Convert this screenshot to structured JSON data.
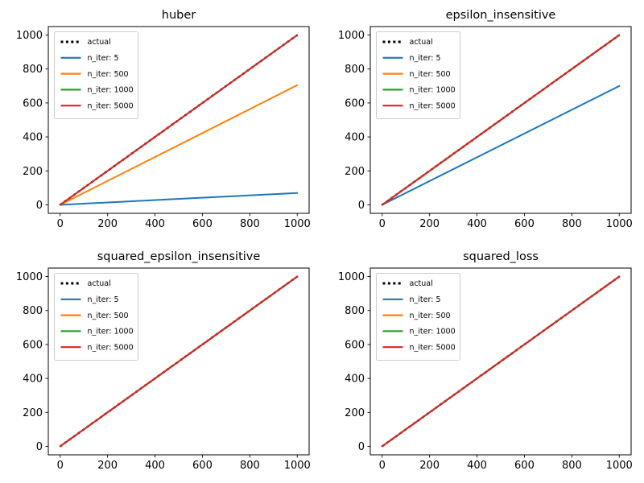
{
  "figure": {
    "background_color": "#ffffff",
    "rows": 2,
    "cols": 2
  },
  "palette": {
    "actual": "#000000",
    "n_iter_5": "#1f77b4",
    "n_iter_500": "#ff7f0e",
    "n_iter_1000": "#2ca02c",
    "n_iter_5000": "#d62728",
    "axis_color": "#000000",
    "legend_border": "#cccccc",
    "legend_bg": "#ffffff"
  },
  "chart_data": [
    {
      "type": "line",
      "title": "huber",
      "xlabel": "",
      "ylabel": "",
      "xlim": [
        -50,
        1050
      ],
      "ylim": [
        -50,
        1050
      ],
      "x_ticks": [
        0,
        200,
        400,
        600,
        800,
        1000
      ],
      "y_ticks": [
        0,
        200,
        400,
        600,
        800,
        1000
      ],
      "grid": false,
      "legend_position": "upper left",
      "series": [
        {
          "name": "actual",
          "color": "#000000",
          "style": "dotted",
          "x": [
            0,
            1000
          ],
          "y": [
            0,
            1000
          ]
        },
        {
          "name": "n_iter: 5",
          "color": "#1f77b4",
          "style": "solid",
          "x": [
            0,
            1000
          ],
          "y": [
            0,
            70
          ]
        },
        {
          "name": "n_iter: 500",
          "color": "#ff7f0e",
          "style": "solid",
          "x": [
            0,
            1000
          ],
          "y": [
            0,
            705
          ]
        },
        {
          "name": "n_iter: 1000",
          "color": "#2ca02c",
          "style": "solid",
          "x": [
            0,
            1000
          ],
          "y": [
            0,
            1000
          ]
        },
        {
          "name": "n_iter: 5000",
          "color": "#d62728",
          "style": "solid",
          "x": [
            0,
            1000
          ],
          "y": [
            0,
            1000
          ]
        }
      ]
    },
    {
      "type": "line",
      "title": "epsilon_insensitive",
      "xlabel": "",
      "ylabel": "",
      "xlim": [
        -50,
        1050
      ],
      "ylim": [
        -50,
        1050
      ],
      "x_ticks": [
        0,
        200,
        400,
        600,
        800,
        1000
      ],
      "y_ticks": [
        0,
        200,
        400,
        600,
        800,
        1000
      ],
      "grid": false,
      "legend_position": "upper left",
      "series": [
        {
          "name": "actual",
          "color": "#000000",
          "style": "dotted",
          "x": [
            0,
            1000
          ],
          "y": [
            0,
            1000
          ]
        },
        {
          "name": "n_iter: 5",
          "color": "#1f77b4",
          "style": "solid",
          "x": [
            0,
            1000
          ],
          "y": [
            0,
            700
          ]
        },
        {
          "name": "n_iter: 500",
          "color": "#ff7f0e",
          "style": "solid",
          "x": [
            0,
            1000
          ],
          "y": [
            0,
            1000
          ]
        },
        {
          "name": "n_iter: 1000",
          "color": "#2ca02c",
          "style": "solid",
          "x": [
            0,
            1000
          ],
          "y": [
            0,
            1000
          ]
        },
        {
          "name": "n_iter: 5000",
          "color": "#d62728",
          "style": "solid",
          "x": [
            0,
            1000
          ],
          "y": [
            0,
            1000
          ]
        }
      ]
    },
    {
      "type": "line",
      "title": "squared_epsilon_insensitive",
      "xlabel": "",
      "ylabel": "",
      "xlim": [
        -50,
        1050
      ],
      "ylim": [
        -50,
        1050
      ],
      "x_ticks": [
        0,
        200,
        400,
        600,
        800,
        1000
      ],
      "y_ticks": [
        0,
        200,
        400,
        600,
        800,
        1000
      ],
      "grid": false,
      "legend_position": "upper left",
      "series": [
        {
          "name": "actual",
          "color": "#000000",
          "style": "dotted",
          "x": [
            0,
            1000
          ],
          "y": [
            0,
            1000
          ]
        },
        {
          "name": "n_iter: 5",
          "color": "#1f77b4",
          "style": "solid",
          "x": [
            0,
            1000
          ],
          "y": [
            0,
            1000
          ]
        },
        {
          "name": "n_iter: 500",
          "color": "#ff7f0e",
          "style": "solid",
          "x": [
            0,
            1000
          ],
          "y": [
            0,
            1000
          ]
        },
        {
          "name": "n_iter: 1000",
          "color": "#2ca02c",
          "style": "solid",
          "x": [
            0,
            1000
          ],
          "y": [
            0,
            1000
          ]
        },
        {
          "name": "n_iter: 5000",
          "color": "#d62728",
          "style": "solid",
          "x": [
            0,
            1000
          ],
          "y": [
            0,
            1000
          ]
        }
      ]
    },
    {
      "type": "line",
      "title": "squared_loss",
      "xlabel": "",
      "ylabel": "",
      "xlim": [
        -50,
        1050
      ],
      "ylim": [
        -50,
        1050
      ],
      "x_ticks": [
        0,
        200,
        400,
        600,
        800,
        1000
      ],
      "y_ticks": [
        0,
        200,
        400,
        600,
        800,
        1000
      ],
      "grid": false,
      "legend_position": "upper left",
      "series": [
        {
          "name": "actual",
          "color": "#000000",
          "style": "dotted",
          "x": [
            0,
            1000
          ],
          "y": [
            0,
            1000
          ]
        },
        {
          "name": "n_iter: 5",
          "color": "#1f77b4",
          "style": "solid",
          "x": [
            0,
            1000
          ],
          "y": [
            0,
            1000
          ]
        },
        {
          "name": "n_iter: 500",
          "color": "#ff7f0e",
          "style": "solid",
          "x": [
            0,
            1000
          ],
          "y": [
            0,
            1000
          ]
        },
        {
          "name": "n_iter: 1000",
          "color": "#2ca02c",
          "style": "solid",
          "x": [
            0,
            1000
          ],
          "y": [
            0,
            1000
          ]
        },
        {
          "name": "n_iter: 5000",
          "color": "#d62728",
          "style": "solid",
          "x": [
            0,
            1000
          ],
          "y": [
            0,
            1000
          ]
        }
      ]
    }
  ]
}
